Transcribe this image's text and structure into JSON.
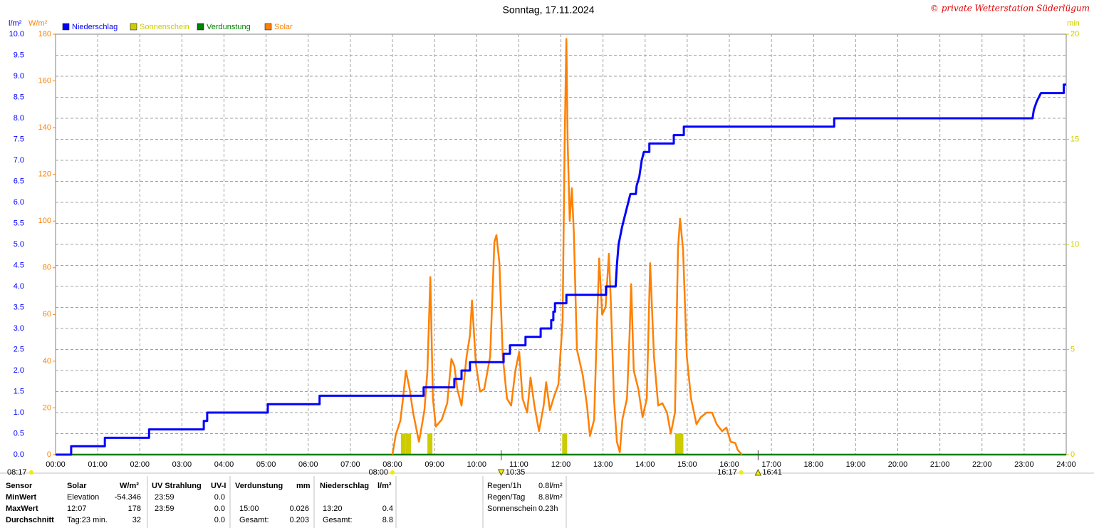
{
  "chart_data": {
    "type": "line",
    "title": "Sonntag, 17.11.2024",
    "credit": "© private Wetterstation Süderlügum",
    "ylabel": "l/m²",
    "y2label": "W/m²",
    "y3label": "min",
    "xlim": [
      0,
      24
    ],
    "xticks": [
      {
        "value": 0,
        "label": "00:00"
      },
      {
        "value": 1,
        "label": "01:00"
      },
      {
        "value": 2,
        "label": "02:00"
      },
      {
        "value": 3,
        "label": "03:00"
      },
      {
        "value": 4,
        "label": "04:00"
      },
      {
        "value": 5,
        "label": "05:00"
      },
      {
        "value": 6,
        "label": "06:00"
      },
      {
        "value": 7,
        "label": "07:00"
      },
      {
        "value": 8,
        "label": "08:00"
      },
      {
        "value": 9,
        "label": "09:00"
      },
      {
        "value": 10,
        "label": "10:00"
      },
      {
        "value": 11,
        "label": "11:00"
      },
      {
        "value": 12,
        "label": "12:00"
      },
      {
        "value": 13,
        "label": "13:00"
      },
      {
        "value": 14,
        "label": "14:00"
      },
      {
        "value": 15,
        "label": "15:00"
      },
      {
        "value": 16,
        "label": "16:00"
      },
      {
        "value": 17,
        "label": "17:00"
      },
      {
        "value": 18,
        "label": "18:00"
      },
      {
        "value": 19,
        "label": "19:00"
      },
      {
        "value": 20,
        "label": "20:00"
      },
      {
        "value": 21,
        "label": "21:00"
      },
      {
        "value": 22,
        "label": "22:00"
      },
      {
        "value": 23,
        "label": "23:00"
      },
      {
        "value": 24,
        "label": "24:00"
      }
    ],
    "ylim": [
      0,
      10
    ],
    "yticks": [
      {
        "value": 0,
        "label": "0.0"
      },
      {
        "value": 0.5,
        "label": "0.5"
      },
      {
        "value": 1,
        "label": "1.0"
      },
      {
        "value": 1.5,
        "label": "1.5"
      },
      {
        "value": 2,
        "label": "2.0"
      },
      {
        "value": 2.5,
        "label": "2.5"
      },
      {
        "value": 3,
        "label": "3.0"
      },
      {
        "value": 3.5,
        "label": "3.5"
      },
      {
        "value": 4,
        "label": "4.0"
      },
      {
        "value": 4.5,
        "label": "4.5"
      },
      {
        "value": 5,
        "label": "5.0"
      },
      {
        "value": 5.5,
        "label": "5.5"
      },
      {
        "value": 6,
        "label": "6.0"
      },
      {
        "value": 6.5,
        "label": "6.5"
      },
      {
        "value": 7,
        "label": "7.0"
      },
      {
        "value": 7.5,
        "label": "7.5"
      },
      {
        "value": 8,
        "label": "8.0"
      },
      {
        "value": 8.5,
        "label": "8.5"
      },
      {
        "value": 9,
        "label": "9.0"
      },
      {
        "value": 9.5,
        "label": "9.5"
      },
      {
        "value": 10,
        "label": "10.0"
      }
    ],
    "y2lim": [
      0,
      180
    ],
    "y2ticks": [
      0,
      20,
      40,
      60,
      80,
      100,
      120,
      140,
      160,
      180
    ],
    "y3lim": [
      0,
      20
    ],
    "y3ticks": [
      0,
      5,
      10,
      15,
      20
    ],
    "grid": true,
    "series": [
      {
        "name": "Niederschlag",
        "color": "#0000ff",
        "axis": "y",
        "x": [
          0,
          0.37,
          0.37,
          1.17,
          1.17,
          2.22,
          2.22,
          3.52,
          3.52,
          3.6,
          3.6,
          5.04,
          5.04,
          6.27,
          6.27,
          8.74,
          8.74,
          9.47,
          9.47,
          9.64,
          9.64,
          9.84,
          9.84,
          10.64,
          10.64,
          10.79,
          10.79,
          11.16,
          11.16,
          11.52,
          11.52,
          11.77,
          11.77,
          11.82,
          11.82,
          11.86,
          11.86,
          12.13,
          12.13,
          13.07,
          13.07,
          13.3,
          13.33,
          13.37,
          13.45,
          13.55,
          13.65,
          13.78,
          13.8,
          13.86,
          13.92,
          13.97,
          14.1,
          14.1,
          14.68,
          14.68,
          14.92,
          14.92,
          18.49,
          18.49,
          23.2,
          23.23,
          23.3,
          23.4,
          23.94,
          23.94,
          24
        ],
        "values": [
          0,
          0,
          0.2,
          0.2,
          0.4,
          0.4,
          0.6,
          0.6,
          0.8,
          0.8,
          1.0,
          1.0,
          1.2,
          1.2,
          1.4,
          1.4,
          1.6,
          1.6,
          1.8,
          1.8,
          2.0,
          2.0,
          2.2,
          2.2,
          2.4,
          2.4,
          2.6,
          2.6,
          2.8,
          2.8,
          3.0,
          3.0,
          3.2,
          3.2,
          3.4,
          3.4,
          3.6,
          3.6,
          3.8,
          3.8,
          4.0,
          4.0,
          4.5,
          5.0,
          5.4,
          5.8,
          6.2,
          6.2,
          6.4,
          6.6,
          7.0,
          7.2,
          7.2,
          7.4,
          7.4,
          7.6,
          7.6,
          7.8,
          7.8,
          8.0,
          8.0,
          8.2,
          8.4,
          8.6,
          8.6,
          8.8,
          8.8
        ]
      },
      {
        "name": "Sonnenschein",
        "color": "#cccc00",
        "axis": "y3",
        "type": "bar",
        "x": [
          8.26,
          8.38,
          8.89,
          12.09,
          14.77,
          14.85
        ],
        "values": [
          1,
          1,
          1,
          1,
          1,
          1
        ]
      },
      {
        "name": "Verdunstung",
        "color": "#008000",
        "axis": "y",
        "x": [
          0,
          24
        ],
        "values": [
          0,
          0
        ]
      },
      {
        "name": "Solar",
        "color": "#ff8000",
        "axis": "y2",
        "x": [
          8.0,
          8.08,
          8.19,
          8.25,
          8.32,
          8.41,
          8.49,
          8.63,
          8.69,
          8.76,
          8.83,
          8.9,
          8.96,
          9.03,
          9.17,
          9.3,
          9.4,
          9.47,
          9.54,
          9.64,
          9.76,
          9.84,
          9.89,
          9.98,
          10.08,
          10.18,
          10.32,
          10.42,
          10.47,
          10.54,
          10.62,
          10.72,
          10.82,
          10.92,
          11.01,
          11.09,
          11.2,
          11.28,
          11.37,
          11.48,
          11.59,
          11.65,
          11.74,
          11.84,
          11.94,
          12.04,
          12.09,
          12.13,
          12.16,
          12.21,
          12.26,
          12.31,
          12.38,
          12.52,
          12.62,
          12.69,
          12.79,
          12.86,
          12.91,
          12.98,
          13.06,
          13.14,
          13.19,
          13.26,
          13.33,
          13.4,
          13.46,
          13.57,
          13.63,
          13.67,
          13.73,
          13.84,
          13.94,
          14.04,
          14.12,
          14.21,
          14.31,
          14.41,
          14.52,
          14.61,
          14.71,
          14.78,
          14.83,
          14.9,
          14.99,
          15.09,
          15.22,
          15.32,
          15.46,
          15.59,
          15.7,
          15.83,
          15.93,
          16.03,
          16.14,
          16.2,
          16.3
        ],
        "values": [
          0,
          8.5,
          14.6,
          24,
          36,
          28,
          18,
          5.5,
          11.6,
          19,
          36,
          76,
          24,
          12,
          15,
          22,
          41,
          38,
          28,
          21,
          42,
          51,
          66,
          39,
          27,
          28,
          42,
          91,
          94,
          82,
          42,
          24,
          21,
          36,
          44,
          24,
          18,
          33,
          21,
          10,
          21,
          31,
          19,
          25,
          30,
          57,
          134,
          178,
          134,
          100,
          114,
          94,
          45,
          34,
          21,
          8,
          15,
          57,
          84,
          60,
          63,
          86,
          63,
          24,
          5.5,
          1,
          15,
          24,
          51,
          73,
          36,
          28,
          16,
          24,
          82,
          42,
          21,
          22,
          18,
          9,
          18,
          88,
          101,
          88,
          42,
          24,
          13,
          16,
          18,
          18,
          13,
          10,
          11.6,
          5.5,
          5,
          2,
          0
        ]
      }
    ],
    "sunrise": "08:17",
    "markers": [
      {
        "value": 8.0,
        "label": "08:00",
        "symbol": "dot"
      },
      {
        "value": 10.583,
        "label": "10:35",
        "symbol": "down"
      },
      {
        "value": 16.283,
        "label": "16:17",
        "symbol": "dot"
      },
      {
        "value": 16.683,
        "label": "16:41",
        "symbol": "up"
      }
    ]
  },
  "stats": {
    "header": {
      "sensor": "Sensor",
      "solar": "Solar",
      "solar_unit": "W/m²",
      "uv": "UV Strahlung",
      "uv_unit": "UV-I",
      "evap": "Verdunstung",
      "evap_unit": "mm",
      "rain": "Niederschlag",
      "rain_unit": "l/m²"
    },
    "rows": [
      {
        "label": "MinWert",
        "solar_time": "Elevation",
        "solar": "-54.346",
        "uv_time": "23:59",
        "uv": "0.0"
      },
      {
        "label": "MaxWert",
        "solar_time": "12:07",
        "solar": "178",
        "uv_time": "23:59",
        "uv": "0.0",
        "evap_time": "15:00",
        "evap": "0.026",
        "rain_time": "13:20",
        "rain": "0.4"
      },
      {
        "label": "Durchschnitt",
        "solar_time": "Tag:23 min.",
        "solar": "32",
        "uv": "0.0",
        "evap_time": "Gesamt:",
        "evap": "0.203",
        "rain_time": "Gesamt:",
        "rain": "8.8"
      }
    ],
    "summary": [
      {
        "label": "Regen/1h",
        "value": "0.8l/m²"
      },
      {
        "label": "Regen/Tag",
        "value": "8.8l/m²"
      },
      {
        "label": "Sonnenschein",
        "value": "0.23h"
      }
    ]
  }
}
